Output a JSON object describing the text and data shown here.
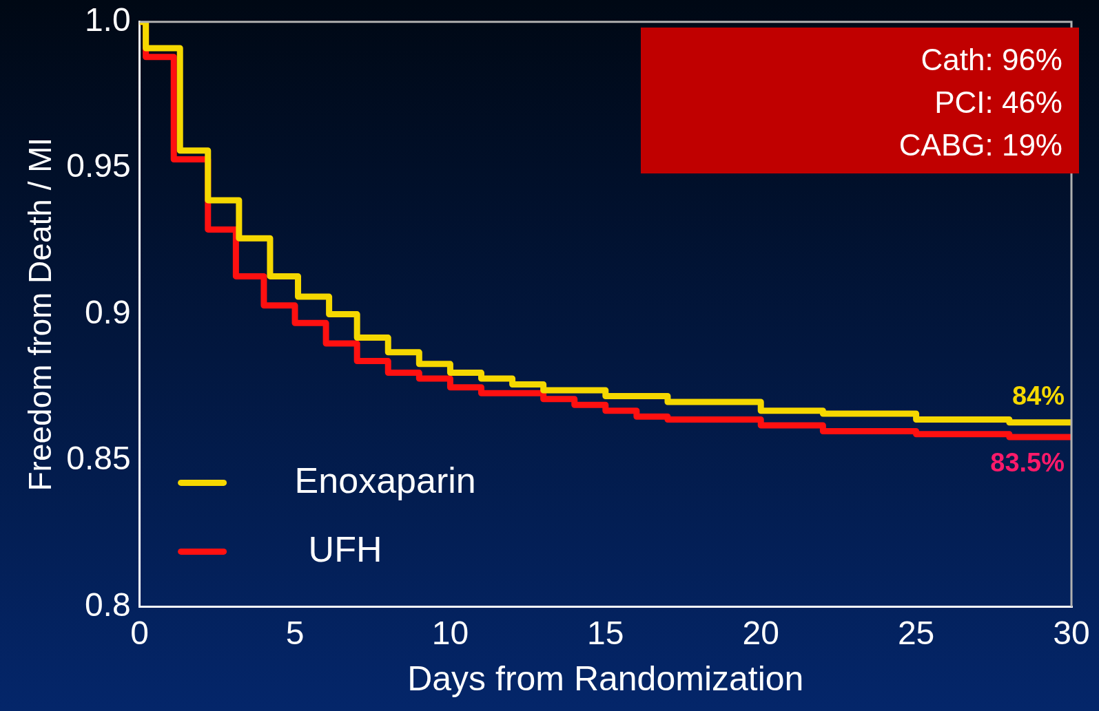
{
  "chart_data": {
    "type": "step",
    "xlabel": "Days from Randomization",
    "ylabel": "Freedom from Death / MI",
    "series": [
      {
        "name": "Enoxaparin",
        "color": "#f5d800",
        "x": [
          0,
          0.2,
          1.3,
          2.2,
          3.2,
          4.2,
          5.1,
          6.1,
          7,
          8,
          9,
          10,
          11,
          12,
          13,
          15,
          17,
          20,
          22,
          25,
          28,
          30
        ],
        "values": [
          1,
          0.991,
          0.956,
          0.939,
          0.926,
          0.913,
          0.906,
          0.9,
          0.892,
          0.887,
          0.883,
          0.88,
          0.878,
          0.876,
          0.874,
          0.872,
          0.87,
          0.867,
          0.866,
          0.864,
          0.863,
          0.862
        ]
      },
      {
        "name": "UFH",
        "color": "#ff1010",
        "x": [
          0,
          0.2,
          1.1,
          2.2,
          3.1,
          4,
          5,
          6,
          7,
          8,
          9,
          10,
          11,
          13,
          14,
          15,
          16,
          17,
          20,
          22,
          25,
          28,
          30
        ],
        "values": [
          1,
          0.988,
          0.953,
          0.929,
          0.913,
          0.903,
          0.897,
          0.89,
          0.884,
          0.88,
          0.878,
          0.875,
          0.873,
          0.871,
          0.869,
          0.867,
          0.865,
          0.864,
          0.862,
          0.86,
          0.859,
          0.858,
          0.857
        ]
      }
    ],
    "xlim": [
      0,
      30
    ],
    "xticks": [
      0,
      5,
      10,
      15,
      20,
      25,
      30
    ],
    "ylim": [
      0.8,
      1
    ],
    "yticks": [
      0.8,
      0.85,
      0.9,
      0.95,
      {
        "value": 1,
        "label": "1.0"
      }
    ],
    "grid": false,
    "legend": "bottom left",
    "marker": "none",
    "line_style": "solid",
    "annotations": [
      "Cath: 96%",
      "PCI: 46%",
      "CABG: 19%",
      {
        "text": "84%",
        "x": 30,
        "y": 0.862
      },
      {
        "text": "83.5%",
        "x": 30,
        "y": 0.857
      }
    ]
  }
}
